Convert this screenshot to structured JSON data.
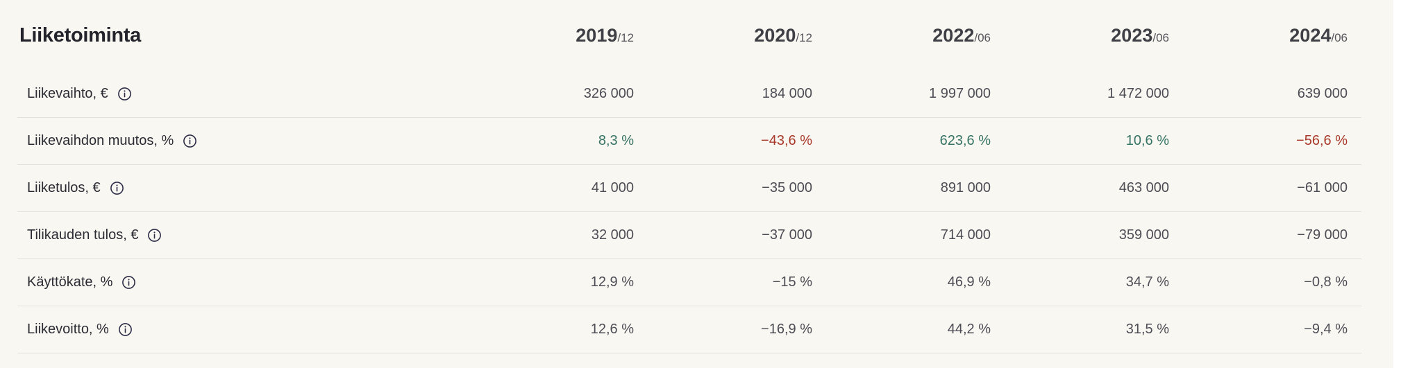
{
  "page": {
    "panel_background": "#f9f7f1",
    "outer_background": "#ffffff",
    "divider_color": "#e4e1d9"
  },
  "table": {
    "title": "Liiketoiminta",
    "columns": [
      {
        "year": "2019",
        "period": "/12"
      },
      {
        "year": "2020",
        "period": "/12"
      },
      {
        "year": "2022",
        "period": "/06"
      },
      {
        "year": "2023",
        "period": "/06"
      },
      {
        "year": "2024",
        "period": "/06"
      }
    ],
    "rows": [
      {
        "label": "Liikevaihto, €",
        "icon": "info-icon",
        "values": [
          "326 000",
          "184 000",
          "1 997 000",
          "1 472 000",
          "639 000"
        ],
        "colors": [
          "default",
          "default",
          "default",
          "default",
          "default"
        ]
      },
      {
        "label": "Liikevaihdon muutos, %",
        "icon": "info-icon",
        "values": [
          "8,3 %",
          "−43,6 %",
          "623,6 %",
          "10,6 %",
          "−56,6 %"
        ],
        "colors": [
          "positive",
          "negative",
          "positive",
          "positive",
          "negative"
        ]
      },
      {
        "label": "Liiketulos, €",
        "icon": "info-icon",
        "values": [
          "41 000",
          "−35 000",
          "891 000",
          "463 000",
          "−61 000"
        ],
        "colors": [
          "default",
          "default",
          "default",
          "default",
          "default"
        ]
      },
      {
        "label": "Tilikauden tulos, €",
        "icon": "info-icon",
        "values": [
          "32 000",
          "−37 000",
          "714 000",
          "359 000",
          "−79 000"
        ],
        "colors": [
          "default",
          "default",
          "default",
          "default",
          "default"
        ]
      },
      {
        "label": "Käyttökate, %",
        "icon": "info-icon",
        "values": [
          "12,9 %",
          "−15 %",
          "46,9 %",
          "34,7 %",
          "−0,8 %"
        ],
        "colors": [
          "default",
          "default",
          "default",
          "default",
          "default"
        ]
      },
      {
        "label": "Liikevoitto, %",
        "icon": "info-icon",
        "values": [
          "12,6 %",
          "−16,9 %",
          "44,2 %",
          "31,5 %",
          "−9,4 %"
        ],
        "colors": [
          "default",
          "default",
          "default",
          "default",
          "default"
        ]
      }
    ],
    "value_colors": {
      "positive": "#367465",
      "negative": "#a9392a",
      "default": "#4d4d55"
    }
  }
}
